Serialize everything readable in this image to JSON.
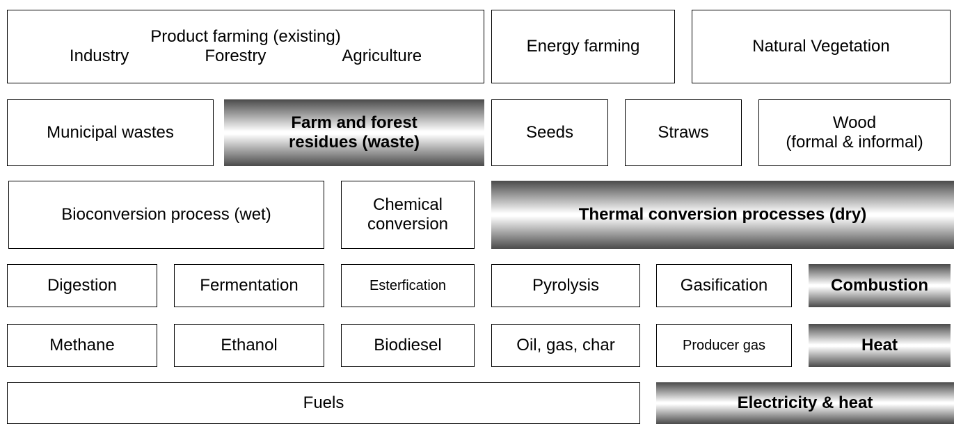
{
  "nodes": [
    {
      "lines": [
        "Product farming (existing)"
      ],
      "sublabels": [
        "Industry",
        "Forestry",
        "Agriculture"
      ]
    },
    {
      "lines": [
        "Energy farming"
      ]
    },
    {
      "lines": [
        "Natural Vegetation"
      ]
    },
    {
      "lines": [
        "Municipal wastes"
      ]
    },
    {
      "lines": [
        "Farm and forest",
        "residues (waste)"
      ]
    },
    {
      "lines": [
        "Seeds"
      ]
    },
    {
      "lines": [
        "Straws"
      ]
    },
    {
      "lines": [
        "Wood",
        "(formal & informal)"
      ]
    },
    {
      "lines": [
        "Bioconversion process (wet)"
      ]
    },
    {
      "lines": [
        "Chemical",
        "conversion"
      ]
    },
    {
      "lines": [
        "Thermal conversion processes (dry)"
      ]
    },
    {
      "lines": [
        "Digestion"
      ]
    },
    {
      "lines": [
        "Fermentation"
      ]
    },
    {
      "lines": [
        "Esterfication"
      ]
    },
    {
      "lines": [
        "Pyrolysis"
      ]
    },
    {
      "lines": [
        "Gasification"
      ]
    },
    {
      "lines": [
        "Combustion"
      ]
    },
    {
      "lines": [
        "Methane"
      ]
    },
    {
      "lines": [
        "Ethanol"
      ]
    },
    {
      "lines": [
        "Biodiesel"
      ]
    },
    {
      "lines": [
        "Oil, gas, char"
      ]
    },
    {
      "lines": [
        "Producer gas"
      ]
    },
    {
      "lines": [
        "Heat"
      ]
    },
    {
      "lines": [
        "Fuels"
      ]
    },
    {
      "lines": [
        "Electricity & heat"
      ]
    }
  ]
}
